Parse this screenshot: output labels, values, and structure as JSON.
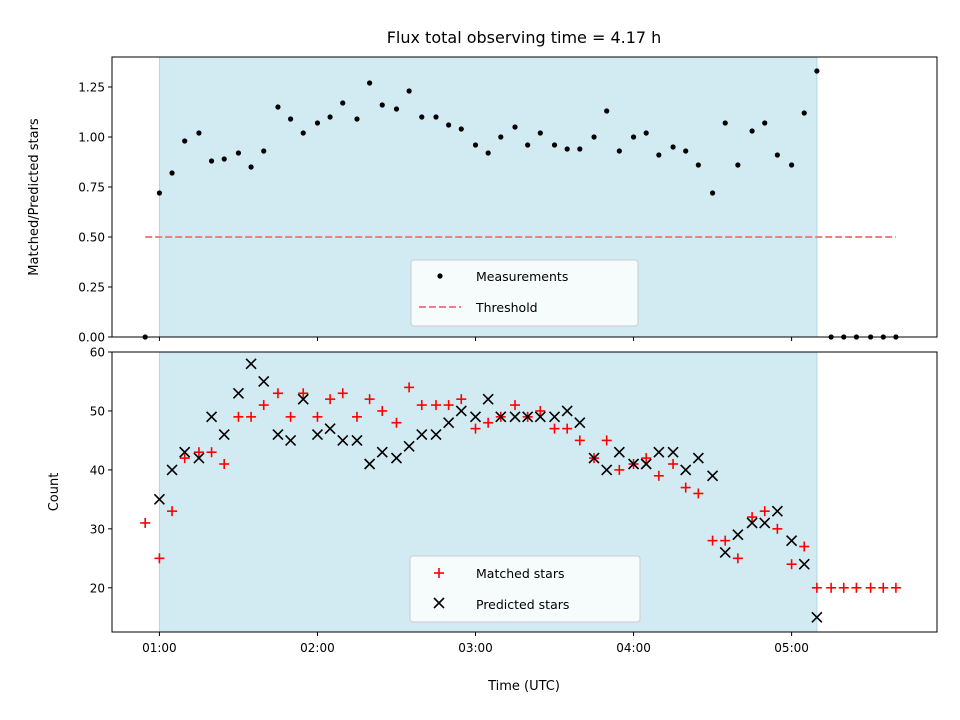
{
  "chart_data": [
    {
      "type": "scatter",
      "title": "Flux total observing time = 4.17 h",
      "ylabel": "Matched/Predicted stars",
      "ylim": [
        0,
        1.4
      ],
      "yticks": [
        "0.00",
        "0.25",
        "0.50",
        "0.75",
        "1.00",
        "1.25"
      ],
      "ytick_values": [
        0,
        0.25,
        0.5,
        0.75,
        1.0,
        1.25
      ],
      "xlim_hours": [
        0.7,
        5.92
      ],
      "xticks": [
        "01:00",
        "02:00",
        "03:00",
        "04:00",
        "05:00"
      ],
      "xtick_values_hours": [
        1,
        2,
        3,
        4,
        5
      ],
      "shaded_span_hours": [
        1.0,
        5.16
      ],
      "shade_color": "#add8e6",
      "legend_position": "lower-center",
      "series": [
        {
          "name": "Measurements",
          "marker": "dot",
          "color": "#000000",
          "x": [
            0.91,
            1.0,
            1.08,
            1.16,
            1.25,
            1.33,
            1.41,
            1.5,
            1.58,
            1.66,
            1.75,
            1.83,
            1.91,
            2.0,
            2.08,
            2.16,
            2.25,
            2.33,
            2.41,
            2.5,
            2.58,
            2.66,
            2.75,
            2.83,
            2.91,
            3.0,
            3.08,
            3.16,
            3.25,
            3.33,
            3.41,
            3.5,
            3.58,
            3.66,
            3.75,
            3.83,
            3.91,
            4.0,
            4.08,
            4.16,
            4.25,
            4.33,
            4.41,
            4.5,
            4.58,
            4.66,
            4.75,
            4.83,
            4.91,
            5.0,
            5.08,
            5.16,
            5.25,
            5.33,
            5.41,
            5.5,
            5.58,
            5.66
          ],
          "y": [
            0.0,
            0.72,
            0.82,
            0.98,
            1.02,
            0.88,
            0.89,
            0.92,
            0.85,
            0.93,
            1.15,
            1.09,
            1.02,
            1.07,
            1.1,
            1.17,
            1.09,
            1.27,
            1.16,
            1.14,
            1.23,
            1.1,
            1.1,
            1.06,
            1.04,
            0.96,
            0.92,
            1.0,
            1.05,
            0.96,
            1.02,
            0.96,
            0.94,
            0.94,
            1.0,
            1.13,
            0.93,
            1.0,
            1.02,
            0.91,
            0.95,
            0.93,
            0.86,
            0.72,
            1.07,
            0.86,
            1.03,
            1.07,
            0.91,
            0.86,
            1.12,
            1.33,
            0.0,
            0.0,
            0.0,
            0.0,
            0.0,
            0.0
          ]
        },
        {
          "name": "Threshold",
          "marker": "dashed-line",
          "color": "#f08080",
          "x": [
            0.91,
            5.66
          ],
          "y": [
            0.5,
            0.5
          ]
        }
      ]
    },
    {
      "type": "scatter",
      "xlabel": "Time (UTC)",
      "ylabel": "Count",
      "ylim": [
        12.5,
        60
      ],
      "yticks": [
        "20",
        "30",
        "40",
        "50",
        "60"
      ],
      "ytick_values": [
        20,
        30,
        40,
        50,
        60
      ],
      "xlim_hours": [
        0.7,
        5.92
      ],
      "xticks": [
        "01:00",
        "02:00",
        "03:00",
        "04:00",
        "05:00"
      ],
      "xtick_values_hours": [
        1,
        2,
        3,
        4,
        5
      ],
      "shaded_span_hours": [
        1.0,
        5.16
      ],
      "shade_color": "#add8e6",
      "legend_position": "lower-center",
      "series": [
        {
          "name": "Matched stars",
          "marker": "plus",
          "color": "#ff0000",
          "x": [
            0.91,
            1.0,
            1.08,
            1.16,
            1.25,
            1.33,
            1.41,
            1.5,
            1.58,
            1.66,
            1.75,
            1.83,
            1.91,
            2.0,
            2.08,
            2.16,
            2.25,
            2.33,
            2.41,
            2.5,
            2.58,
            2.66,
            2.75,
            2.83,
            2.91,
            3.0,
            3.08,
            3.16,
            3.25,
            3.33,
            3.41,
            3.5,
            3.58,
            3.66,
            3.75,
            3.83,
            3.91,
            4.0,
            4.08,
            4.16,
            4.25,
            4.33,
            4.41,
            4.5,
            4.58,
            4.66,
            4.75,
            4.83,
            4.91,
            5.0,
            5.08,
            5.16,
            5.25,
            5.33,
            5.41,
            5.5,
            5.58,
            5.66
          ],
          "y": [
            31,
            25,
            33,
            42,
            43,
            43,
            41,
            49,
            49,
            51,
            53,
            49,
            53,
            49,
            52,
            53,
            49,
            52,
            50,
            48,
            54,
            51,
            51,
            51,
            52,
            47,
            48,
            49,
            51,
            49,
            50,
            47,
            47,
            45,
            42,
            45,
            40,
            41,
            42,
            39,
            41,
            37,
            36,
            28,
            28,
            25,
            32,
            33,
            30,
            24,
            27,
            20,
            20,
            20,
            20,
            20,
            20,
            20
          ]
        },
        {
          "name": "Predicted stars",
          "marker": "x",
          "color": "#000000",
          "x": [
            1.0,
            1.08,
            1.16,
            1.25,
            1.33,
            1.41,
            1.5,
            1.58,
            1.66,
            1.75,
            1.83,
            1.91,
            2.0,
            2.08,
            2.16,
            2.25,
            2.33,
            2.41,
            2.5,
            2.58,
            2.66,
            2.75,
            2.83,
            2.91,
            3.0,
            3.08,
            3.16,
            3.25,
            3.33,
            3.41,
            3.5,
            3.58,
            3.66,
            3.75,
            3.83,
            3.91,
            4.0,
            4.08,
            4.16,
            4.25,
            4.33,
            4.41,
            4.5,
            4.58,
            4.66,
            4.75,
            4.83,
            4.91,
            5.0,
            5.08,
            5.16
          ],
          "y": [
            35,
            40,
            43,
            42,
            49,
            46,
            53,
            58,
            55,
            46,
            45,
            52,
            46,
            47,
            45,
            45,
            41,
            43,
            42,
            44,
            46,
            46,
            48,
            50,
            49,
            52,
            49,
            49,
            49,
            49,
            49,
            50,
            48,
            42,
            40,
            43,
            41,
            41,
            43,
            43,
            40,
            42,
            39,
            26,
            29,
            31,
            31,
            33,
            28,
            24,
            15
          ]
        }
      ]
    }
  ]
}
